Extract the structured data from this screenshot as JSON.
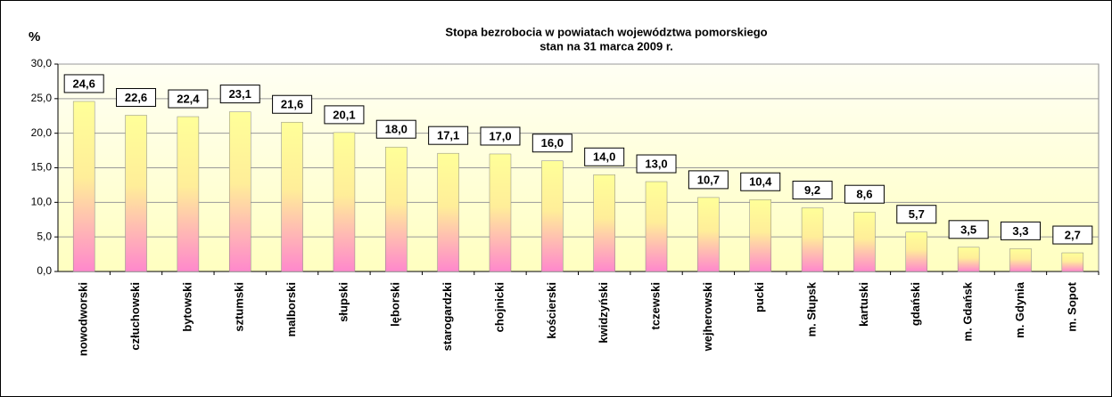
{
  "chart_data": {
    "type": "bar",
    "title": "Stopa bezrobocia w powiatach województwa pomorskiego",
    "subtitle": "stan na 31 marca 2009  r.",
    "y_label": "%",
    "categories": [
      "nowodworski",
      "człuchowski",
      "bytowski",
      "sztumski",
      "malborski",
      "słupski",
      "lęborski",
      "starogardzki",
      "chojnicki",
      "kościerski",
      "kwidzyński",
      "tczewski",
      "wejherowski",
      "pucki",
      "m. Słupsk",
      "kartuski",
      "gdański",
      "m. Gdańsk",
      "m. Gdynia",
      "m. Sopot"
    ],
    "values": [
      24.6,
      22.6,
      22.4,
      23.1,
      21.6,
      20.1,
      18.0,
      17.1,
      17.0,
      16.0,
      14.0,
      13.0,
      10.7,
      10.4,
      9.2,
      8.6,
      5.7,
      3.5,
      3.3,
      2.7
    ],
    "value_labels": [
      "24,6",
      "22,6",
      "22,4",
      "23,1",
      "21,6",
      "20,1",
      "18,0",
      "17,1",
      "17,0",
      "16,0",
      "14,0",
      "13,0",
      "10,7",
      "10,4",
      "9,2",
      "8,6",
      "5,7",
      "3,5",
      "3,3",
      "2,7"
    ],
    "ylim": [
      0,
      30
    ],
    "yticks": [
      {
        "value": 0,
        "label": "0,0"
      },
      {
        "value": 5,
        "label": "5,0"
      },
      {
        "value": 10,
        "label": "10,0"
      },
      {
        "value": 15,
        "label": "15,0"
      },
      {
        "value": 20,
        "label": "20,0"
      },
      {
        "value": 25,
        "label": "25,0"
      },
      {
        "value": 30,
        "label": "30,0"
      }
    ],
    "grid": true
  }
}
